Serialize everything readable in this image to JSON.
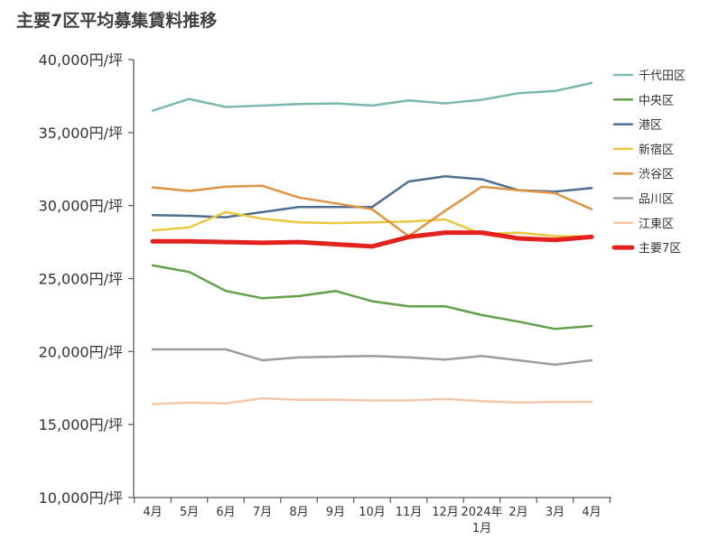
{
  "chart_data": {
    "type": "line",
    "title": "主要7区平均募集賃料推移",
    "xlabel": "",
    "ylabel": "",
    "ylim": [
      10000,
      40000
    ],
    "yticks": [
      "10,000円/坪",
      "15,000円/坪",
      "20,000円/坪",
      "25,000円/坪",
      "30,000円/坪",
      "35,000円/坪",
      "40,000円/坪"
    ],
    "categories": [
      "4月",
      "5月",
      "6月",
      "7月",
      "8月",
      "9月",
      "10月",
      "11月",
      "12月",
      "2024年\n1月",
      "2月",
      "3月",
      "4月"
    ],
    "grid": false,
    "legend_position": "right",
    "series": [
      {
        "name": "千代田区",
        "color": "#7ab8b0",
        "width": 2.5,
        "values": [
          36500,
          37300,
          36750,
          36850,
          36950,
          37000,
          36850,
          37200,
          37000,
          37250,
          37700,
          37850,
          38400
        ]
      },
      {
        "name": "中央区",
        "color": "#62a04a",
        "width": 2.5,
        "values": [
          25900,
          25450,
          24150,
          23650,
          23800,
          24150,
          23450,
          23100,
          23100,
          22500,
          22050,
          21550,
          21750
        ]
      },
      {
        "name": "港区",
        "color": "#4e6e92",
        "width": 2.5,
        "values": [
          29350,
          29300,
          29200,
          29550,
          29900,
          29900,
          29900,
          31650,
          32000,
          31800,
          31050,
          30950,
          31200
        ]
      },
      {
        "name": "新宿区",
        "color": "#e9c73e",
        "width": 2.5,
        "values": [
          28300,
          28500,
          29550,
          29100,
          28850,
          28800,
          28850,
          28900,
          29050,
          28050,
          28150,
          27900,
          27900
        ]
      },
      {
        "name": "渋谷区",
        "color": "#dd9443",
        "width": 2.5,
        "values": [
          31250,
          31000,
          31300,
          31350,
          30550,
          30150,
          29750,
          27900,
          29650,
          31300,
          31050,
          30850,
          29750
        ]
      },
      {
        "name": "品川区",
        "color": "#9d9d9d",
        "width": 2.5,
        "values": [
          20150,
          20150,
          20150,
          19400,
          19600,
          19650,
          19700,
          19600,
          19450,
          19700,
          19400,
          19100,
          19400
        ]
      },
      {
        "name": "江東区",
        "color": "#f2c8a8",
        "width": 2.5,
        "values": [
          16400,
          16500,
          16450,
          16800,
          16700,
          16700,
          16650,
          16650,
          16750,
          16600,
          16500,
          16550,
          16550
        ]
      },
      {
        "name": "主要7区",
        "color": "#e3211f",
        "width": 5,
        "values": [
          27550,
          27550,
          27500,
          27450,
          27500,
          27350,
          27200,
          27850,
          28150,
          28150,
          27750,
          27650,
          27850
        ]
      }
    ]
  }
}
